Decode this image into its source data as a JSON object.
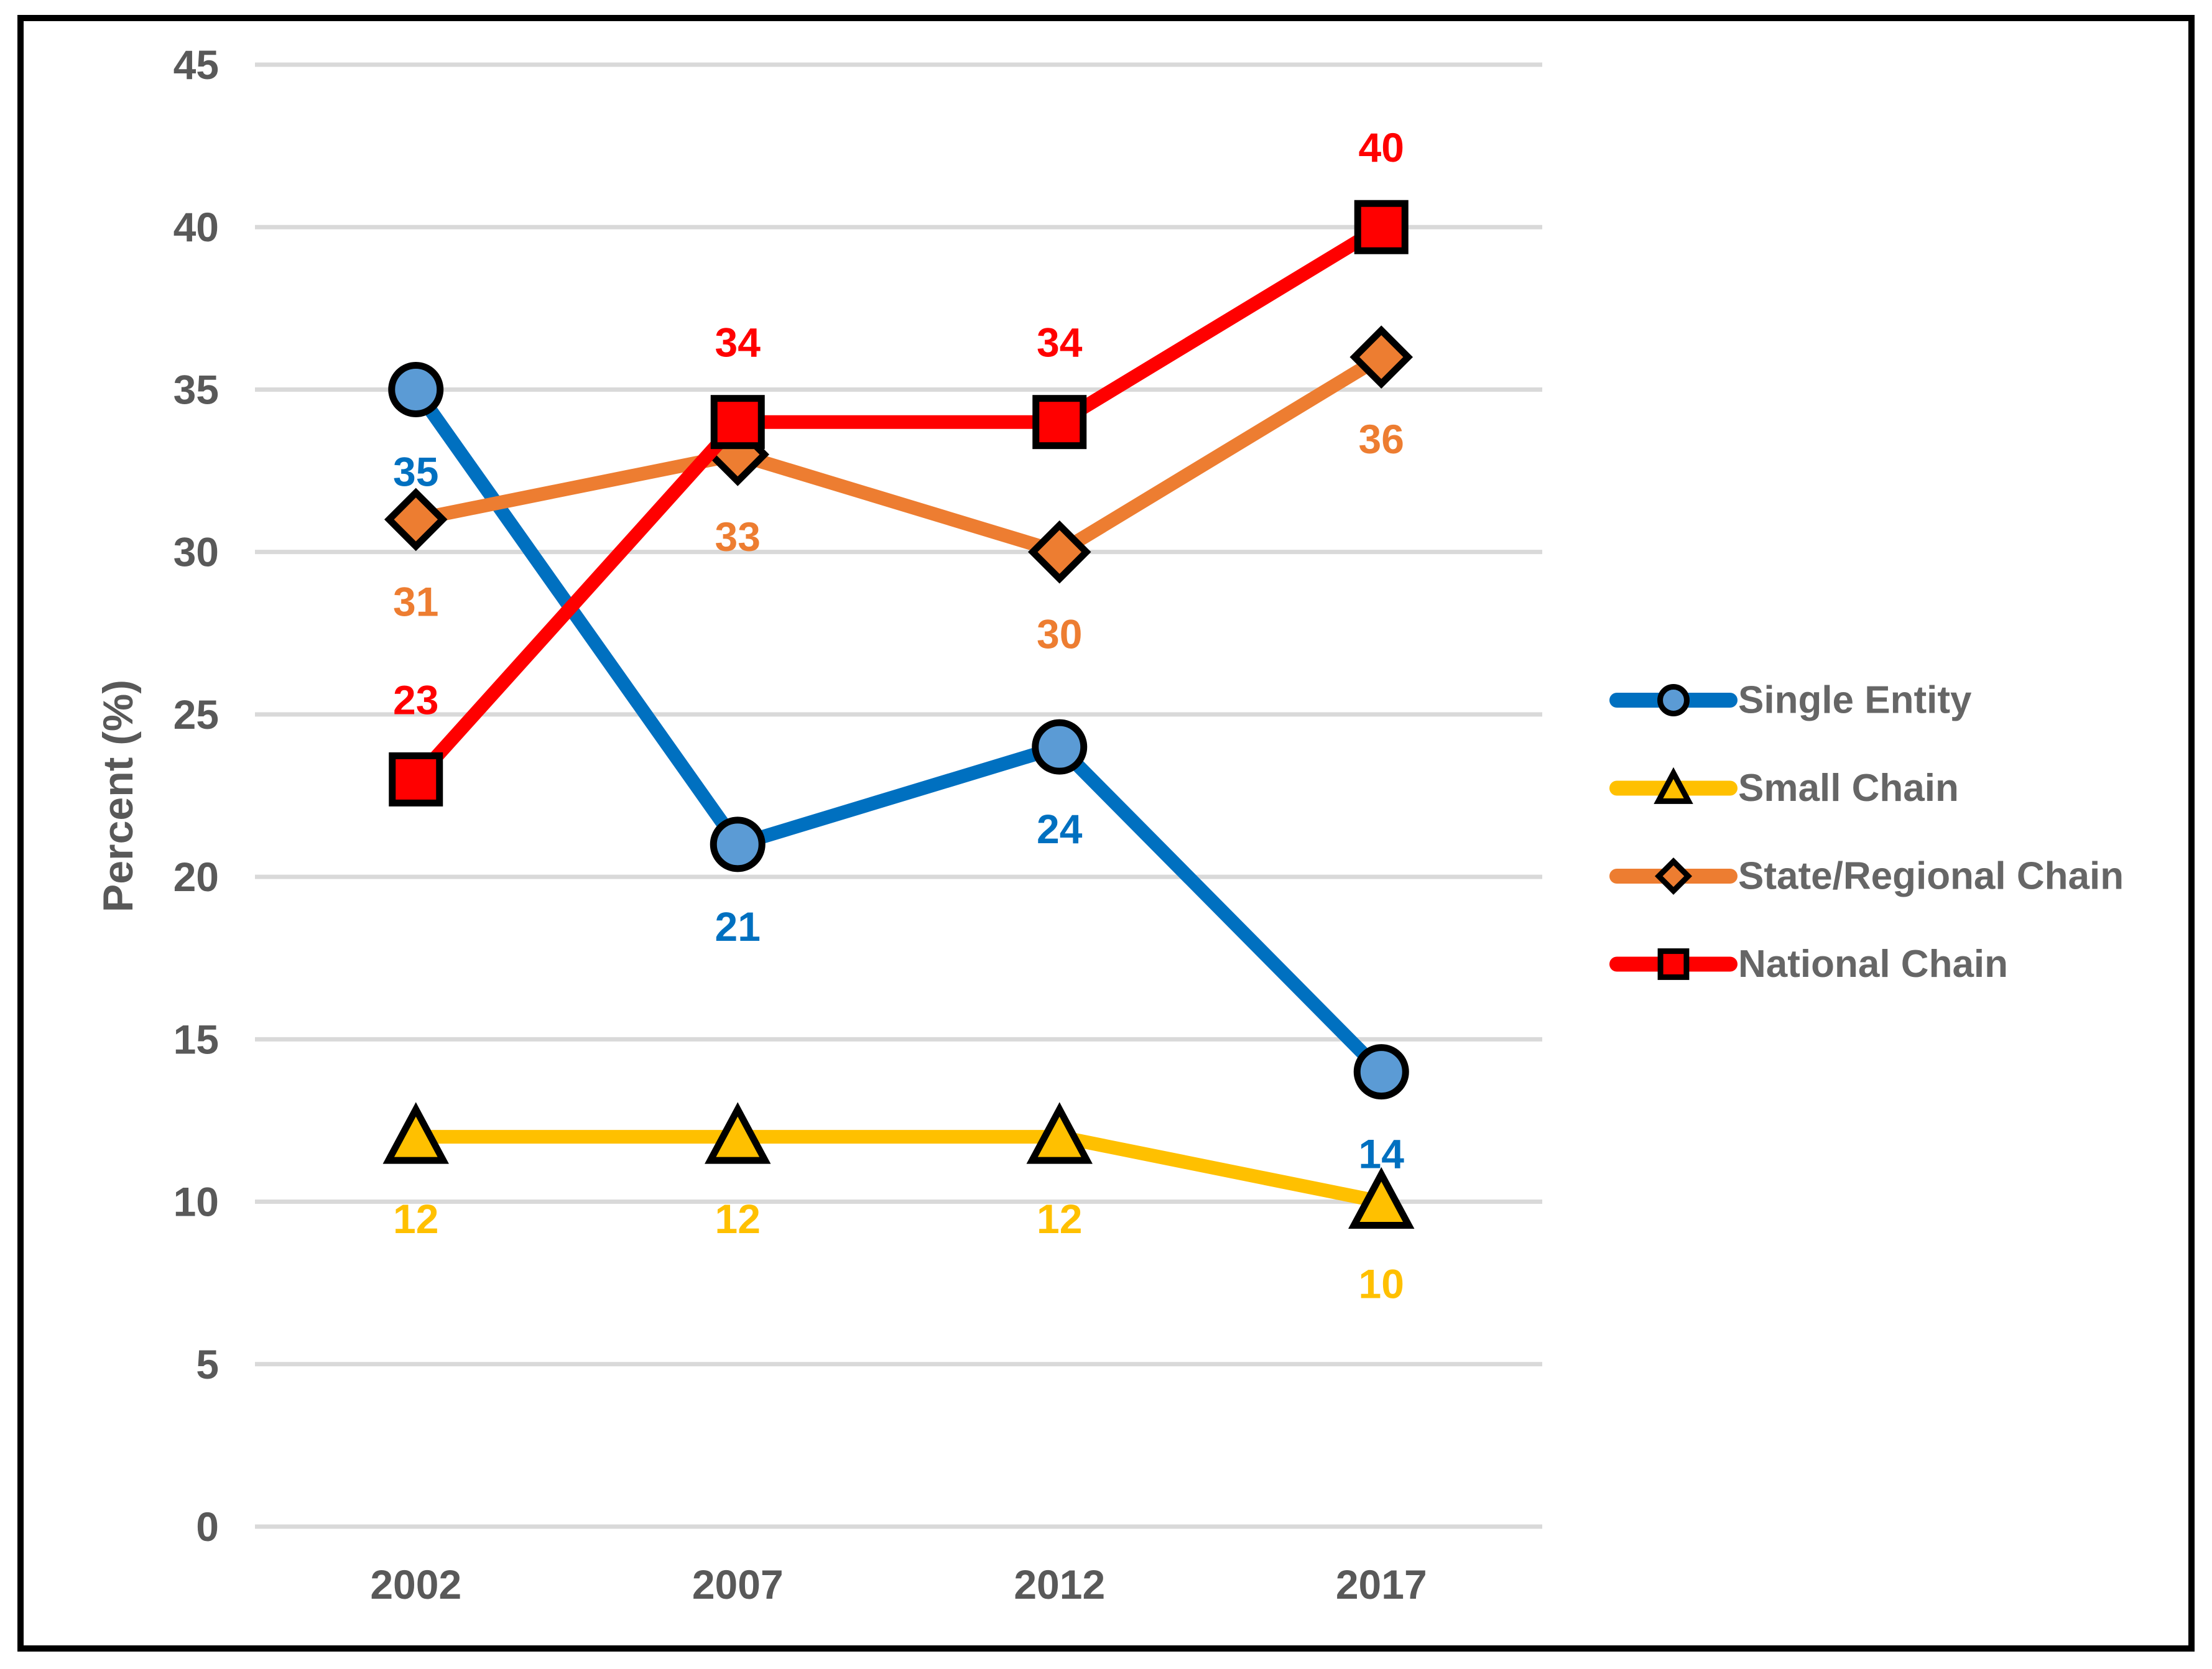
{
  "colors": {
    "background": "#ffffff",
    "border": "#000000",
    "gridline": "#d9d9d9",
    "axis_text": "#595959",
    "legend_text": "#666666",
    "marker_outline": "#000000"
  },
  "chart_data": {
    "type": "line",
    "title": "",
    "xlabel": "",
    "ylabel": "Percent (%)",
    "categories": [
      "2002",
      "2007",
      "2012",
      "2017"
    ],
    "ylim": [
      0,
      45
    ],
    "yticks": [
      0,
      5,
      10,
      15,
      20,
      25,
      30,
      35,
      40,
      45
    ],
    "grid": "horizontal",
    "legend_position": "right",
    "series": [
      {
        "name": "Single Entity",
        "marker": "circle",
        "color": "#0070C0",
        "marker_fill": "#5B9BD5",
        "values": [
          35,
          21,
          24,
          14
        ],
        "data_labels": [
          "35",
          "21",
          "24",
          "14"
        ],
        "label_position": "below"
      },
      {
        "name": "Small Chain",
        "marker": "triangle",
        "color": "#FFC000",
        "marker_fill": "#FFC000",
        "values": [
          12,
          12,
          12,
          10
        ],
        "data_labels": [
          "12",
          "12",
          "12",
          "10"
        ],
        "label_position": "below"
      },
      {
        "name": "State/Regional Chain",
        "marker": "diamond",
        "color": "#ED7D31",
        "marker_fill": "#ED7D31",
        "values": [
          31,
          33,
          30,
          36
        ],
        "data_labels": [
          "31",
          "33",
          "30",
          "36"
        ],
        "label_position": "below"
      },
      {
        "name": "National Chain",
        "marker": "square",
        "color": "#FF0000",
        "marker_fill": "#FF0000",
        "values": [
          23,
          34,
          34,
          40
        ],
        "data_labels": [
          "23",
          "34",
          "34",
          "40"
        ],
        "label_position": "above"
      }
    ]
  }
}
